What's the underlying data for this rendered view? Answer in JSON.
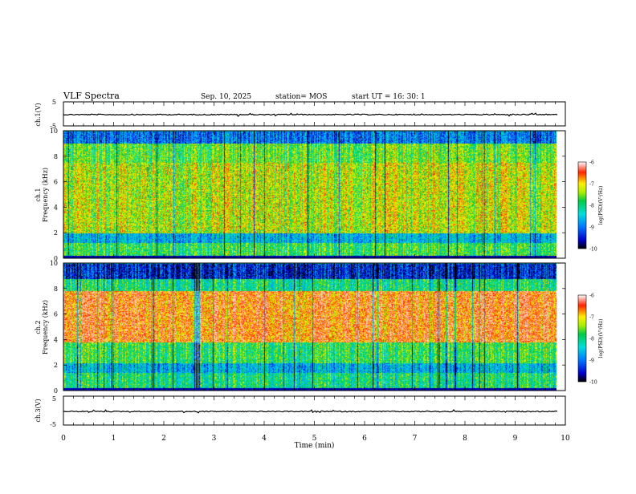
{
  "header": {
    "title": "VLF Spectra",
    "date": "Sep. 10, 2025",
    "station": "station= MOS",
    "start": "start  UT =   16: 30: 1"
  },
  "chart_data": [
    {
      "type": "line",
      "title": "VLF Spectra",
      "ylabel": "ch.1(V)",
      "ylim": [
        -5,
        5
      ],
      "yticks": [
        "5",
        "-5"
      ],
      "xlim": [
        0,
        10
      ],
      "series": [
        {
          "name": "ch.1 waveform",
          "level": -0.3
        }
      ]
    },
    {
      "type": "heatmap",
      "ylabel_line1": "ch.1",
      "ylabel_line2": "Frequency (kHz)",
      "ylim": [
        0,
        10
      ],
      "yticks": [
        "0",
        "2",
        "4",
        "6",
        "8",
        "10"
      ],
      "xlim": [
        0,
        9.85
      ],
      "colorbar": {
        "label": "log(PSD)(V²/Hz)",
        "range": [
          -10,
          -6
        ],
        "ticks": [
          "-6",
          "-7",
          "-8",
          "-9",
          "-10"
        ]
      },
      "profile": {
        "bands": [
          [
            0.0,
            0.25,
            0.05
          ],
          [
            0.25,
            1.2,
            0.55
          ],
          [
            1.2,
            2.0,
            0.35
          ],
          [
            2.0,
            7.5,
            0.68
          ],
          [
            7.5,
            9.0,
            0.6
          ],
          [
            9.0,
            10.0,
            0.25
          ]
        ]
      }
    },
    {
      "type": "heatmap",
      "ylabel_line1": "ch.2",
      "ylabel_line2": "Frequency (kHz)",
      "ylim": [
        0,
        10
      ],
      "yticks": [
        "0",
        "2",
        "4",
        "6",
        "8",
        "10"
      ],
      "xlim": [
        0,
        9.85
      ],
      "colorbar": {
        "label": "log(PSD)(V²/Hz)",
        "range": [
          -10,
          -6
        ],
        "ticks": [
          "-6",
          "-7",
          "-8",
          "-9",
          "-10"
        ]
      },
      "profile": {
        "bands": [
          [
            0.0,
            0.25,
            0.05
          ],
          [
            0.25,
            1.4,
            0.5
          ],
          [
            1.4,
            2.2,
            0.35
          ],
          [
            2.2,
            3.8,
            0.55
          ],
          [
            3.8,
            7.8,
            0.85
          ],
          [
            7.8,
            8.8,
            0.5
          ],
          [
            8.8,
            10.0,
            0.15
          ]
        ]
      }
    },
    {
      "type": "line",
      "ylabel": "ch.3(V)",
      "ylim": [
        -5,
        5
      ],
      "yticks": [
        "5",
        "-5"
      ],
      "xlim": [
        0,
        10
      ],
      "xlabel": "Time (min)",
      "xticks": [
        "0",
        "1",
        "2",
        "3",
        "4",
        "5",
        "6",
        "7",
        "8",
        "9",
        "10"
      ],
      "series": [
        {
          "name": "ch.3 waveform",
          "level": -0.3
        }
      ]
    }
  ]
}
